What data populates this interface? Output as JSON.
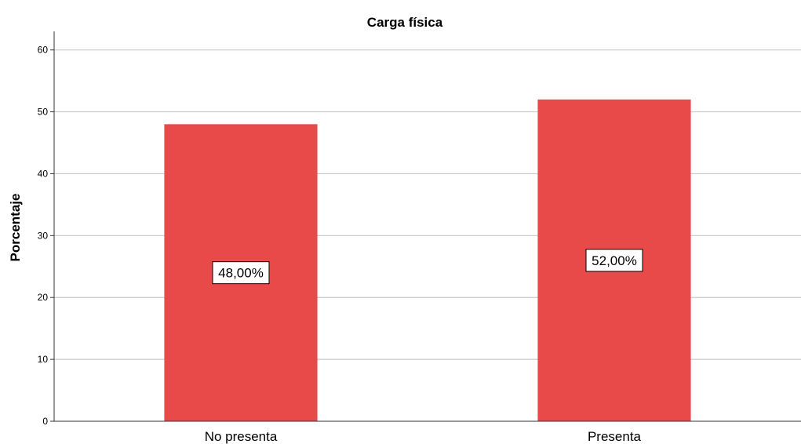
{
  "chart_data": {
    "type": "bar",
    "title": "Carga física",
    "xlabel": "",
    "ylabel": "Porcentaje",
    "categories": [
      "No presenta",
      "Presenta"
    ],
    "values": [
      48,
      52
    ],
    "data_labels": [
      "48,00%",
      "52,00%"
    ],
    "ylim": [
      0,
      63
    ],
    "yticks": [
      0,
      10,
      20,
      30,
      40,
      50,
      60
    ],
    "bar_color": "#e84a4a",
    "grid": true,
    "legend": "none"
  }
}
